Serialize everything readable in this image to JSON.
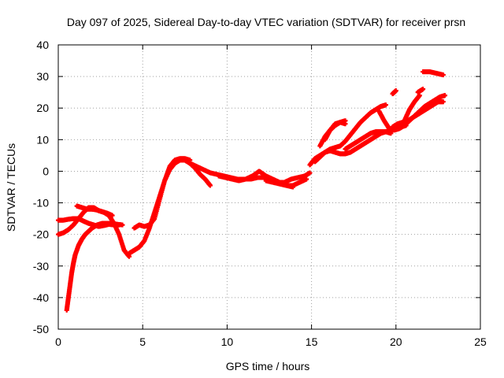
{
  "chart_data": {
    "type": "scatter",
    "title": "Day 097 of 2025, Sidereal Day-to-day VTEC variation (SDTVAR) for receiver prsn",
    "xlabel": "GPS time / hours",
    "ylabel": "SDTVAR / TECUs",
    "xlim": [
      0,
      25
    ],
    "ylim": [
      -50,
      40
    ],
    "xticks": [
      0,
      5,
      10,
      15,
      20,
      25
    ],
    "yticks": [
      -50,
      -40,
      -30,
      -20,
      -10,
      0,
      10,
      20,
      30,
      40
    ],
    "xtick_labels": [
      "0",
      "5",
      "10",
      "15",
      "20",
      "25"
    ],
    "ytick_labels": [
      "-50",
      "-40",
      "-30",
      "-20",
      "-10",
      "0",
      "10",
      "20",
      "30",
      "40"
    ],
    "grid": true,
    "marker": "+",
    "marker_color": "#ff0000",
    "series": [
      {
        "x": [
          0.0,
          0.3,
          0.6,
          0.9,
          1.2,
          1.5,
          1.8,
          2.1,
          2.4,
          2.7,
          3.0,
          3.3,
          3.5
        ],
        "y": [
          -15.5,
          -15.5,
          -15.2,
          -15.0,
          -15.0,
          -15.8,
          -16.5,
          -17.0,
          -17.5,
          -17.2,
          -16.8,
          -17.0,
          -17.5
        ]
      },
      {
        "x": [
          0.0,
          0.3,
          0.6,
          0.9,
          1.2,
          1.5,
          1.8,
          2.1,
          2.4,
          2.7,
          3.0,
          3.3,
          3.6,
          3.9,
          4.2
        ],
        "y": [
          -20.0,
          -19.5,
          -18.5,
          -17.0,
          -15.0,
          -13.0,
          -11.5,
          -11.5,
          -12.5,
          -13.0,
          -14.0,
          -16.5,
          -20.0,
          -25.0,
          -27.0
        ]
      },
      {
        "x": [
          1.1,
          1.4,
          1.7,
          2.0,
          2.3,
          2.6,
          2.9,
          3.2
        ],
        "y": [
          -11.0,
          -11.5,
          -12.0,
          -12.0,
          -12.3,
          -12.8,
          -13.3,
          -14.0
        ]
      },
      {
        "x": [
          0.5,
          0.6,
          0.7,
          0.8,
          0.9,
          1.0,
          1.2,
          1.4,
          1.6,
          1.8,
          2.0,
          2.3,
          2.6,
          2.9,
          3.2,
          3.5,
          3.8
        ],
        "y": [
          -44.0,
          -40.0,
          -36.0,
          -32.0,
          -29.0,
          -26.5,
          -23.5,
          -21.5,
          -20.0,
          -19.0,
          -18.0,
          -17.0,
          -16.5,
          -16.5,
          -16.5,
          -16.8,
          -17.0
        ]
      },
      {
        "x": [
          4.2,
          4.5,
          4.8,
          5.1,
          5.4,
          5.7,
          6.0,
          6.3,
          6.6,
          6.9,
          7.2,
          7.5,
          7.8,
          8.1,
          8.4,
          8.7,
          9.0
        ],
        "y": [
          -26.0,
          -25.0,
          -24.0,
          -22.0,
          -18.0,
          -13.0,
          -8.0,
          -3.0,
          0.5,
          2.5,
          3.5,
          3.5,
          2.5,
          1.0,
          -1.0,
          -2.5,
          -4.5
        ]
      },
      {
        "x": [
          4.5,
          4.8,
          5.1,
          5.4,
          5.7,
          6.0,
          6.3,
          6.6,
          6.9,
          7.2,
          7.5,
          7.8
        ],
        "y": [
          -18.0,
          -17.0,
          -17.5,
          -17.0,
          -15.0,
          -9.0,
          -3.0,
          1.5,
          3.5,
          4.0,
          4.0,
          3.5
        ]
      },
      {
        "x": [
          7.8,
          8.2,
          8.6,
          9.0,
          9.4,
          9.8,
          10.2,
          10.6,
          11.0,
          11.4,
          11.8,
          12.2,
          12.6,
          13.0,
          13.4,
          13.8,
          14.2,
          14.6,
          14.9
        ],
        "y": [
          2.5,
          1.5,
          0.5,
          -0.5,
          -1.0,
          -1.5,
          -2.0,
          -2.5,
          -2.5,
          -2.5,
          -2.0,
          -2.0,
          -3.0,
          -3.5,
          -3.5,
          -2.5,
          -2.0,
          -1.5,
          -0.5
        ]
      },
      {
        "x": [
          9.5,
          9.9,
          10.3,
          10.7,
          11.1,
          11.5,
          11.9,
          12.3,
          12.7,
          13.1,
          13.5,
          13.9
        ],
        "y": [
          -1.5,
          -2.0,
          -2.5,
          -3.0,
          -2.5,
          -1.5,
          0.0,
          -1.5,
          -2.5,
          -3.5,
          -4.5,
          -5.0
        ]
      },
      {
        "x": [
          12.3,
          12.7,
          13.1,
          13.5,
          13.9,
          14.3,
          14.7
        ],
        "y": [
          -3.0,
          -3.5,
          -4.0,
          -4.5,
          -4.5,
          -3.5,
          -2.5
        ]
      },
      {
        "x": [
          14.9,
          15.2,
          15.5,
          15.8,
          16.1,
          16.4,
          16.7,
          17.0,
          17.3,
          17.6,
          17.9,
          18.2,
          18.5,
          18.8,
          19.1,
          19.4
        ],
        "y": [
          2.0,
          4.0,
          5.0,
          6.0,
          7.0,
          7.5,
          8.0,
          9.5,
          11.5,
          13.5,
          15.5,
          17.0,
          18.5,
          19.5,
          20.5,
          21.0
        ]
      },
      {
        "x": [
          15.2,
          15.5,
          15.8,
          16.1,
          16.4,
          16.7,
          17.0,
          17.3,
          17.6,
          17.9,
          18.2,
          18.5,
          18.8,
          19.1,
          19.4,
          19.7,
          20.0,
          20.3,
          20.6
        ],
        "y": [
          3.0,
          4.5,
          6.0,
          6.5,
          6.0,
          5.5,
          5.5,
          6.0,
          7.0,
          8.0,
          9.0,
          10.0,
          11.0,
          12.0,
          12.5,
          13.0,
          13.5,
          14.0,
          14.5
        ]
      },
      {
        "x": [
          15.5,
          15.8,
          16.1,
          16.4,
          16.7,
          17.0
        ],
        "y": [
          8.0,
          11.0,
          13.0,
          14.5,
          15.5,
          16.0
        ]
      },
      {
        "x": [
          15.8,
          16.1,
          16.4,
          16.7,
          17.0
        ],
        "y": [
          10.0,
          13.0,
          15.0,
          15.5,
          15.0
        ]
      },
      {
        "x": [
          17.0,
          17.3,
          17.6,
          17.9,
          18.2,
          18.5,
          18.8,
          19.1,
          19.4,
          19.7
        ],
        "y": [
          7.0,
          8.0,
          9.0,
          10.0,
          11.0,
          12.0,
          12.5,
          12.5,
          12.5,
          12.0
        ]
      },
      {
        "x": [
          19.0,
          19.3,
          19.6,
          19.9,
          20.2,
          20.5,
          20.8,
          21.1,
          21.4,
          21.7,
          22.0,
          22.3,
          22.6,
          22.9
        ],
        "y": [
          19.0,
          16.0,
          13.5,
          13.0,
          13.5,
          14.5,
          16.0,
          17.5,
          19.0,
          20.5,
          21.5,
          22.5,
          23.5,
          24.0
        ]
      },
      {
        "x": [
          19.8,
          20.1,
          20.4,
          20.7,
          21.0,
          21.3,
          21.6,
          21.9,
          22.2,
          22.5,
          22.8
        ],
        "y": [
          14.0,
          15.0,
          15.5,
          16.0,
          17.0,
          18.0,
          19.0,
          20.0,
          21.0,
          22.0,
          22.0
        ]
      },
      {
        "x": [
          20.5,
          20.8,
          21.1,
          21.4
        ],
        "y": [
          16.0,
          19.5,
          22.0,
          24.0
        ]
      },
      {
        "x": [
          21.6,
          22.0,
          22.4,
          22.8
        ],
        "y": [
          31.5,
          31.5,
          31.0,
          30.5
        ]
      },
      {
        "x": [
          19.8,
          20.0
        ],
        "y": [
          24.5,
          25.5
        ]
      },
      {
        "x": [
          21.3,
          21.6
        ],
        "y": [
          25.0,
          26.0
        ]
      }
    ]
  }
}
